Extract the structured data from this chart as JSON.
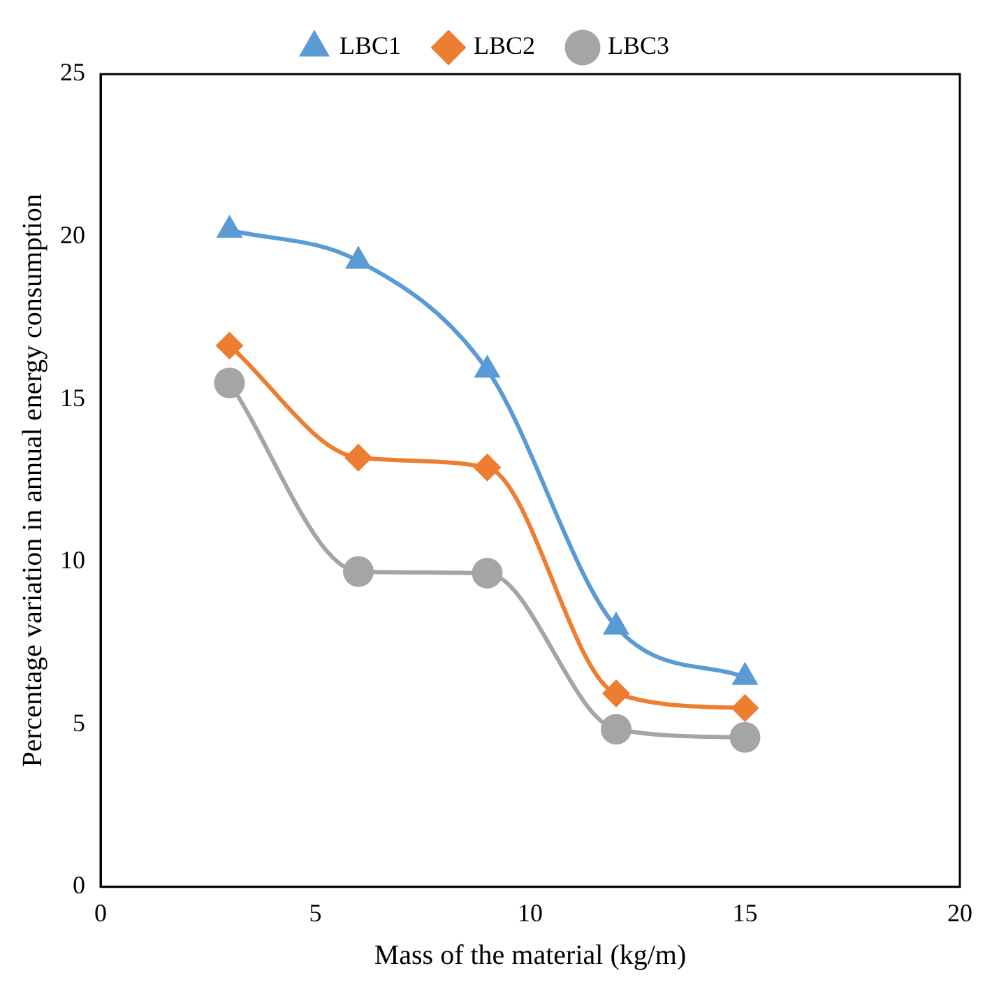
{
  "chart_data": {
    "type": "line",
    "xlabel": "Mass of the material (kg/m)",
    "ylabel": "Percentage variation in annual energy consumption",
    "x": [
      3,
      6,
      9,
      12,
      15
    ],
    "xlim": [
      0,
      20
    ],
    "xticks": [
      0,
      5,
      10,
      15,
      20
    ],
    "ylim": [
      0,
      25
    ],
    "yticks": [
      0,
      5,
      10,
      15,
      20,
      25
    ],
    "grid": false,
    "legend": "top",
    "series": [
      {
        "name": "LBC1",
        "color": "#5b9bd5",
        "marker": "triangle",
        "values": [
          20.2,
          19.25,
          15.9,
          8.0,
          6.45
        ]
      },
      {
        "name": "LBC2",
        "color": "#ed7d31",
        "marker": "diamond",
        "values": [
          16.65,
          13.2,
          12.9,
          5.95,
          5.5
        ]
      },
      {
        "name": "LBC3",
        "color": "#a5a5a5",
        "marker": "circle",
        "values": [
          15.5,
          9.7,
          9.65,
          4.85,
          4.6
        ]
      }
    ]
  }
}
